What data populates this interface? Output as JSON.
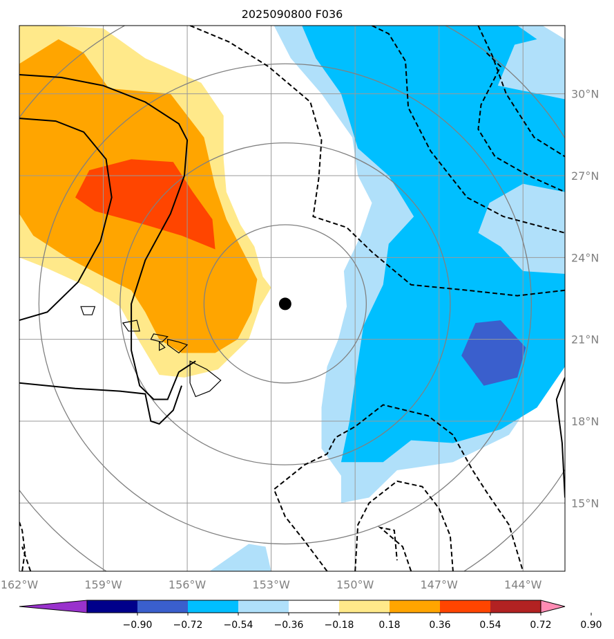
{
  "chart_data": {
    "type": "heatmap",
    "title": "2025090800 F036",
    "xlabel": "",
    "ylabel": "",
    "xlim": [
      -162,
      -142.5
    ],
    "ylim": [
      12.5,
      32.5
    ],
    "x_ticks": [
      {
        "value": -162,
        "label": "162°W"
      },
      {
        "value": -159,
        "label": "159°W"
      },
      {
        "value": -156,
        "label": "156°W"
      },
      {
        "value": -153,
        "label": "153°W"
      },
      {
        "value": -150,
        "label": "150°W"
      },
      {
        "value": -147,
        "label": "147°W"
      },
      {
        "value": -144,
        "label": "144°W"
      }
    ],
    "y_ticks": [
      {
        "value": 15,
        "label": "15°N"
      },
      {
        "value": 18,
        "label": "18°N"
      },
      {
        "value": 21,
        "label": "21°N"
      },
      {
        "value": 24,
        "label": "24°N"
      },
      {
        "value": 27,
        "label": "27°N"
      },
      {
        "value": 30,
        "label": "30°N"
      }
    ],
    "grid": true,
    "storm_center": {
      "lon": -152.5,
      "lat": 22.3
    },
    "colorbar": {
      "levels": [
        "−0.90",
        "−0.72",
        "−0.54",
        "−0.36",
        "−0.18",
        "0.18",
        "0.36",
        "0.54",
        "0.72",
        "0.90"
      ],
      "colors": [
        "#9932cc",
        "#00008b",
        "#3a5fcd",
        "#00bfff",
        "#b0e0fa",
        "#ffffff",
        "#ffe98a",
        "#ffa500",
        "#ff4500",
        "#b22222",
        "#ff8cb4"
      ],
      "extend": "both"
    },
    "shaded_regions": [
      {
        "level": 0.18,
        "color": "#ffe98a",
        "polygon": [
          [
            -162,
            32.5
          ],
          [
            -161,
            32.5
          ],
          [
            -159,
            32.4
          ],
          [
            -157.5,
            31.3
          ],
          [
            -155.5,
            30.4
          ],
          [
            -154.7,
            29.2
          ],
          [
            -154.7,
            27.6
          ],
          [
            -154.6,
            26.4
          ],
          [
            -154.1,
            25.2
          ],
          [
            -153.6,
            24.4
          ],
          [
            -153.3,
            23.3
          ],
          [
            -153.0,
            22.9
          ],
          [
            -153.4,
            22.2
          ],
          [
            -153.8,
            21.0
          ],
          [
            -154.9,
            19.9
          ],
          [
            -156.1,
            19.6
          ],
          [
            -157.0,
            19.7
          ],
          [
            -157.7,
            20.9
          ],
          [
            -158.4,
            22.2
          ],
          [
            -159.5,
            22.9
          ],
          [
            -161.0,
            23.6
          ],
          [
            -162,
            24.0
          ]
        ]
      },
      {
        "level": 0.36,
        "color": "#ffa500",
        "polygon": [
          [
            -162,
            31.1
          ],
          [
            -160.6,
            32.0
          ],
          [
            -159.7,
            31.5
          ],
          [
            -158.8,
            30.2
          ],
          [
            -156.6,
            30.0
          ],
          [
            -155.4,
            28.4
          ],
          [
            -155.0,
            26.6
          ],
          [
            -154.6,
            25.4
          ],
          [
            -154.0,
            24.2
          ],
          [
            -153.5,
            23.2
          ],
          [
            -153.7,
            22.0
          ],
          [
            -154.2,
            21.0
          ],
          [
            -155.0,
            20.5
          ],
          [
            -156.2,
            20.5
          ],
          [
            -157.0,
            21.0
          ],
          [
            -157.5,
            22.0
          ],
          [
            -158.0,
            22.8
          ],
          [
            -159.0,
            23.3
          ],
          [
            -160.3,
            24.0
          ],
          [
            -161.5,
            24.8
          ],
          [
            -162,
            25.6
          ]
        ]
      },
      {
        "level": 0.54,
        "color": "#ff4500",
        "polygon": [
          [
            -160.0,
            26.2
          ],
          [
            -159.5,
            27.2
          ],
          [
            -158.0,
            27.6
          ],
          [
            -156.5,
            27.5
          ],
          [
            -155.8,
            26.4
          ],
          [
            -155.1,
            25.4
          ],
          [
            -155.0,
            24.3
          ],
          [
            -156.2,
            24.8
          ],
          [
            -157.5,
            25.2
          ],
          [
            -159.3,
            25.7
          ]
        ]
      },
      {
        "level": -0.18,
        "color": "#b0e0fa",
        "polygon": [
          [
            -152.9,
            32.5
          ],
          [
            -143.3,
            32.5
          ],
          [
            -142.5,
            32.0
          ],
          [
            -142.5,
            21.0
          ],
          [
            -143.5,
            19.0
          ],
          [
            -144.5,
            17.5
          ],
          [
            -146.5,
            16.5
          ],
          [
            -148.5,
            16.2
          ],
          [
            -149.5,
            15.2
          ],
          [
            -150.5,
            15.0
          ],
          [
            -150.5,
            16.0
          ],
          [
            -151.2,
            17.0
          ],
          [
            -151.2,
            18.5
          ],
          [
            -151.0,
            20.0
          ],
          [
            -150.6,
            21.0
          ],
          [
            -150.3,
            22.2
          ],
          [
            -150.4,
            23.5
          ],
          [
            -149.8,
            24.8
          ],
          [
            -149.4,
            26.0
          ],
          [
            -149.9,
            27.0
          ],
          [
            -150.1,
            28.4
          ],
          [
            -151.2,
            30.0
          ],
          [
            -152.3,
            31.3
          ]
        ]
      },
      {
        "level": -0.36,
        "color": "#00bfff",
        "polygon": [
          [
            -151.9,
            32.5
          ],
          [
            -144.2,
            32.5
          ],
          [
            -143.5,
            32.0
          ],
          [
            -144.3,
            31.8
          ],
          [
            -144.9,
            30.3
          ],
          [
            -142.5,
            29.8
          ],
          [
            -142.5,
            26.4
          ],
          [
            -144.0,
            26.7
          ],
          [
            -145.2,
            26.0
          ],
          [
            -145.6,
            24.9
          ],
          [
            -144.8,
            24.4
          ],
          [
            -144.0,
            23.5
          ],
          [
            -142.5,
            23.4
          ],
          [
            -142.5,
            20.0
          ],
          [
            -143.5,
            18.5
          ],
          [
            -144.8,
            17.7
          ],
          [
            -146.5,
            17.2
          ],
          [
            -148.0,
            17.3
          ],
          [
            -149.0,
            16.5
          ],
          [
            -150.5,
            16.5
          ],
          [
            -150.2,
            18.0
          ],
          [
            -150.0,
            19.5
          ],
          [
            -149.7,
            21.5
          ],
          [
            -149.0,
            23.0
          ],
          [
            -148.8,
            24.5
          ],
          [
            -147.9,
            25.5
          ],
          [
            -148.8,
            27.0
          ],
          [
            -149.9,
            28.0
          ],
          [
            -150.5,
            30.0
          ],
          [
            -151.4,
            31.3
          ]
        ]
      },
      {
        "level": -0.54,
        "color": "#3a5fcd",
        "polygon": [
          [
            -146.2,
            20.4
          ],
          [
            -145.7,
            21.6
          ],
          [
            -144.8,
            21.7
          ],
          [
            -143.9,
            20.7
          ],
          [
            -144.2,
            19.6
          ],
          [
            -145.4,
            19.3
          ]
        ]
      },
      {
        "level": -0.18,
        "color": "#b0e0fa",
        "polygon": [
          [
            -155.2,
            12.5
          ],
          [
            -153.0,
            12.5
          ],
          [
            -153.2,
            13.4
          ],
          [
            -153.8,
            13.5
          ],
          [
            -154.5,
            13.0
          ]
        ]
      }
    ],
    "solid_contours": [
      [
        [
          -162,
          30.7
        ],
        [
          -160.5,
          30.6
        ],
        [
          -159.0,
          30.3
        ],
        [
          -157.5,
          29.7
        ],
        [
          -156.3,
          28.9
        ],
        [
          -156.0,
          28.3
        ],
        [
          -156.1,
          27.0
        ],
        [
          -156.6,
          25.6
        ],
        [
          -157.5,
          23.9
        ],
        [
          -158.0,
          22.3
        ],
        [
          -158.0,
          20.6
        ],
        [
          -157.7,
          19.3
        ],
        [
          -157.2,
          18.8
        ],
        [
          -156.7,
          18.8
        ],
        [
          -156.3,
          19.8
        ],
        [
          -155.7,
          20.2
        ]
      ],
      [
        [
          -162,
          29.1
        ],
        [
          -160.7,
          29.0
        ],
        [
          -159.7,
          28.6
        ],
        [
          -158.9,
          27.6
        ],
        [
          -158.7,
          26.2
        ],
        [
          -159.1,
          24.6
        ],
        [
          -159.9,
          23.1
        ],
        [
          -161.0,
          22.0
        ],
        [
          -162,
          21.7
        ]
      ],
      [
        [
          -162,
          19.4
        ],
        [
          -160.0,
          19.2
        ],
        [
          -158.4,
          19.1
        ],
        [
          -157.5,
          19.0
        ],
        [
          -157.3,
          18.0
        ],
        [
          -157.0,
          17.9
        ],
        [
          -156.5,
          18.4
        ],
        [
          -156.2,
          19.3
        ]
      ],
      [
        [
          -142.5,
          19.6
        ],
        [
          -142.8,
          18.8
        ],
        [
          -142.6,
          17.2
        ],
        [
          -142.5,
          15.2
        ]
      ]
    ],
    "dashed_contours": [
      [
        [
          -155.9,
          32.5
        ],
        [
          -154.5,
          31.9
        ],
        [
          -153.1,
          31.0
        ],
        [
          -151.6,
          29.7
        ],
        [
          -151.2,
          28.3
        ],
        [
          -151.3,
          26.9
        ],
        [
          -151.5,
          25.5
        ],
        [
          -150.3,
          25.1
        ],
        [
          -149.4,
          24.2
        ],
        [
          -148.0,
          23.0
        ],
        [
          -146.0,
          22.8
        ],
        [
          -144.2,
          22.6
        ],
        [
          -142.5,
          22.8
        ]
      ],
      [
        [
          -149.4,
          32.5
        ],
        [
          -148.8,
          32.2
        ],
        [
          -148.2,
          31.2
        ],
        [
          -148.1,
          29.5
        ],
        [
          -147.3,
          27.9
        ],
        [
          -146.0,
          26.2
        ],
        [
          -144.7,
          25.5
        ],
        [
          -142.5,
          24.9
        ]
      ],
      [
        [
          -145.6,
          32.5
        ],
        [
          -145.1,
          31.4
        ],
        [
          -144.6,
          30.0
        ],
        [
          -143.6,
          28.4
        ],
        [
          -142.5,
          27.7
        ]
      ],
      [
        [
          -145.3,
          31.5
        ],
        [
          -144.8,
          31.0
        ],
        [
          -145.5,
          29.6
        ],
        [
          -145.6,
          28.7
        ],
        [
          -145.0,
          27.7
        ],
        [
          -143.8,
          27.0
        ],
        [
          -142.5,
          26.4
        ]
      ],
      [
        [
          -151.0,
          12.5
        ],
        [
          -151.8,
          13.6
        ],
        [
          -152.5,
          14.5
        ],
        [
          -152.9,
          15.5
        ],
        [
          -151.8,
          16.4
        ],
        [
          -151.0,
          16.8
        ],
        [
          -150.7,
          17.4
        ],
        [
          -150.0,
          17.8
        ],
        [
          -149.0,
          18.6
        ],
        [
          -147.4,
          18.2
        ],
        [
          -146.5,
          17.5
        ],
        [
          -145.8,
          16.2
        ],
        [
          -145.3,
          15.4
        ],
        [
          -144.5,
          14.2
        ],
        [
          -144.0,
          12.5
        ]
      ],
      [
        [
          -150.0,
          12.5
        ],
        [
          -149.9,
          14.2
        ],
        [
          -149.5,
          15.0
        ],
        [
          -148.5,
          15.8
        ],
        [
          -147.6,
          15.6
        ],
        [
          -147.0,
          14.8
        ],
        [
          -146.6,
          13.8
        ],
        [
          -146.5,
          12.5
        ]
      ],
      [
        [
          -148.0,
          12.5
        ],
        [
          -148.3,
          13.4
        ],
        [
          -149.1,
          14.1
        ],
        [
          -148.6,
          14.0
        ],
        [
          -148.5,
          12.9
        ]
      ],
      [
        [
          -161.9,
          12.5
        ],
        [
          -161.8,
          13.2
        ],
        [
          -161.9,
          14.0
        ],
        [
          -162,
          14.3
        ]
      ],
      [
        [
          -161.6,
          12.5
        ],
        [
          -161.9,
          13.4
        ]
      ]
    ],
    "gray_circles": [
      {
        "lon": -152.5,
        "lat": 22.3,
        "r_deg": 2.9
      },
      {
        "lon": -152.5,
        "lat": 22.3,
        "r_deg": 5.9
      },
      {
        "lon": -152.5,
        "lat": 22.3,
        "r_deg": 8.8
      },
      {
        "lon": -152.5,
        "lat": 22.3,
        "r_deg": 11.7
      }
    ],
    "coastlines": [
      [
        [
          -158.3,
          21.6
        ],
        [
          -157.8,
          21.7
        ],
        [
          -157.7,
          21.3
        ],
        [
          -158.1,
          21.3
        ]
      ],
      [
        [
          -159.8,
          22.2
        ],
        [
          -159.3,
          22.2
        ],
        [
          -159.4,
          21.9
        ],
        [
          -159.7,
          21.9
        ]
      ],
      [
        [
          -157.2,
          21.2
        ],
        [
          -156.7,
          21.1
        ],
        [
          -156.9,
          20.9
        ],
        [
          -157.3,
          21.0
        ]
      ],
      [
        [
          -156.7,
          21.0
        ],
        [
          -156.3,
          20.9
        ],
        [
          -156.0,
          20.8
        ],
        [
          -156.3,
          20.5
        ],
        [
          -156.7,
          20.8
        ]
      ],
      [
        [
          -155.9,
          20.2
        ],
        [
          -155.3,
          19.9
        ],
        [
          -154.8,
          19.5
        ],
        [
          -155.2,
          19.1
        ],
        [
          -155.7,
          18.9
        ],
        [
          -155.9,
          19.4
        ]
      ],
      [
        [
          -157.0,
          20.9
        ],
        [
          -156.8,
          20.7
        ],
        [
          -157.0,
          20.6
        ]
      ]
    ]
  }
}
